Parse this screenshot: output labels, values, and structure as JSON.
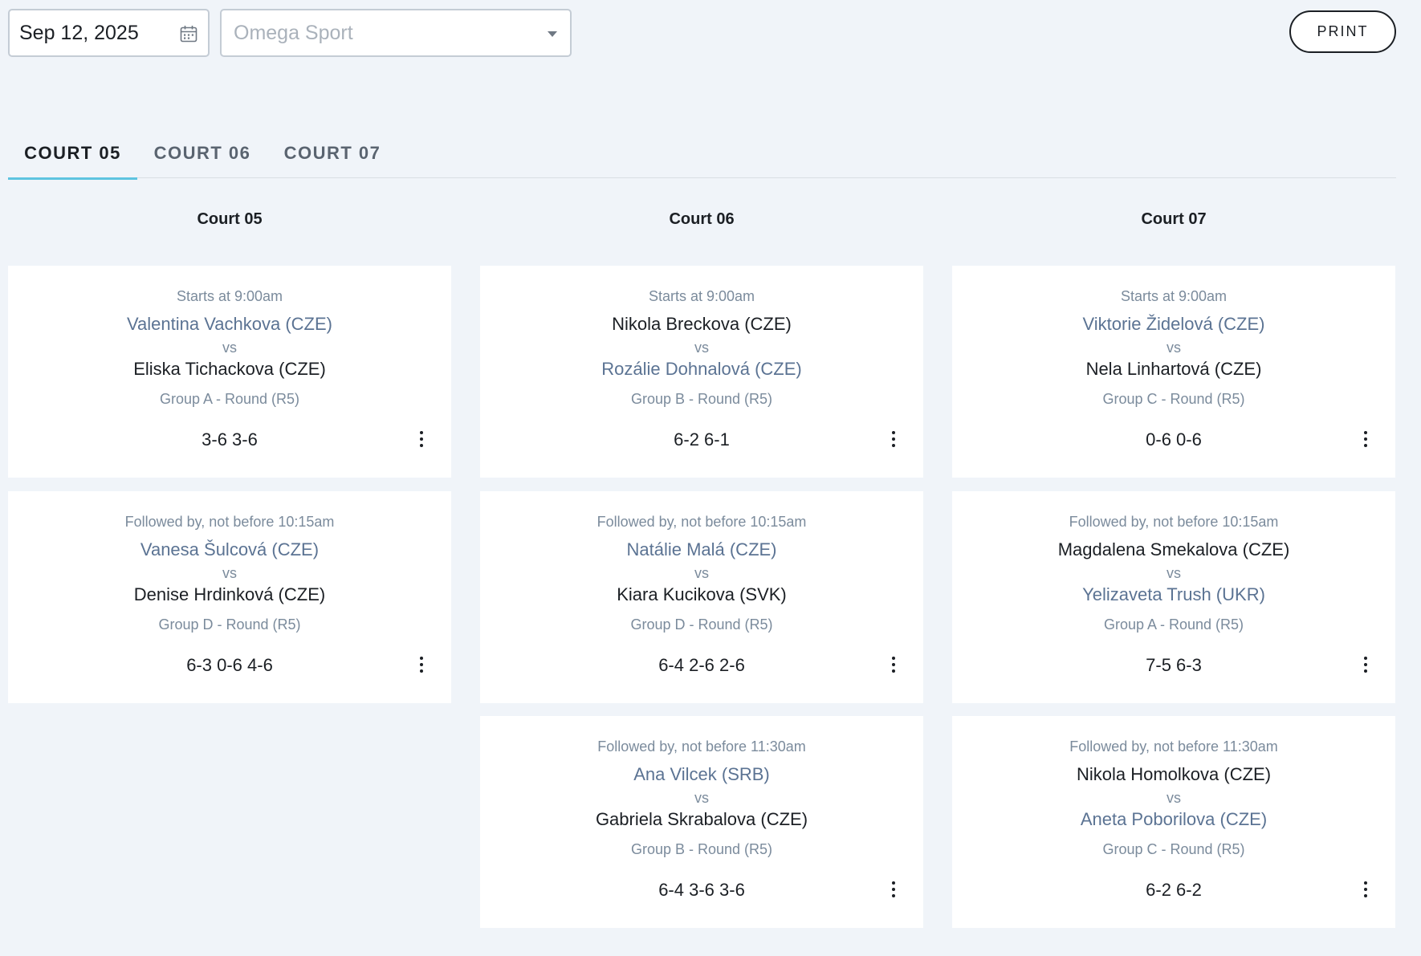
{
  "filters": {
    "date": "Sep 12, 2025",
    "venue_placeholder": "Omega Sport"
  },
  "print_label": "PRINT",
  "tabs": [
    {
      "label": "COURT 05",
      "active": true
    },
    {
      "label": "COURT 06",
      "active": false
    },
    {
      "label": "COURT 07",
      "active": false
    }
  ],
  "columns": [
    {
      "title": "Court 05",
      "matches": [
        {
          "when": "Starts at 9:00am",
          "p1": "Valentina Vachkova (CZE)",
          "p1_muted": true,
          "vs": "vs",
          "p2": "Eliska Tichackova (CZE)",
          "p2_muted": false,
          "group": "Group A - Round (R5)",
          "score": "3-6 3-6"
        },
        {
          "when": "Followed by, not before 10:15am",
          "p1": "Vanesa Šulcová (CZE)",
          "p1_muted": true,
          "vs": "vs",
          "p2": "Denise Hrdinková (CZE)",
          "p2_muted": false,
          "group": "Group D - Round (R5)",
          "score": "6-3 0-6 4-6"
        }
      ]
    },
    {
      "title": "Court 06",
      "matches": [
        {
          "when": "Starts at 9:00am",
          "p1": "Nikola Breckova (CZE)",
          "p1_muted": false,
          "vs": "vs",
          "p2": "Rozálie Dohnalová (CZE)",
          "p2_muted": true,
          "group": "Group B - Round (R5)",
          "score": "6-2 6-1"
        },
        {
          "when": "Followed by, not before 10:15am",
          "p1": "Natálie Malá (CZE)",
          "p1_muted": true,
          "vs": "vs",
          "p2": "Kiara Kucikova (SVK)",
          "p2_muted": false,
          "group": "Group D - Round (R5)",
          "score": "6-4 2-6 2-6"
        },
        {
          "when": "Followed by, not before 11:30am",
          "p1": "Ana Vilcek (SRB)",
          "p1_muted": true,
          "vs": "vs",
          "p2": "Gabriela Skrabalova (CZE)",
          "p2_muted": false,
          "group": "Group B - Round (R5)",
          "score": "6-4 3-6 3-6"
        }
      ]
    },
    {
      "title": "Court 07",
      "matches": [
        {
          "when": "Starts at 9:00am",
          "p1": "Viktorie Židelová (CZE)",
          "p1_muted": true,
          "vs": "vs",
          "p2": "Nela Linhartová (CZE)",
          "p2_muted": false,
          "group": "Group C - Round (R5)",
          "score": "0-6 0-6"
        },
        {
          "when": "Followed by, not before 10:15am",
          "p1": "Magdalena Smekalova (CZE)",
          "p1_muted": false,
          "vs": "vs",
          "p2": "Yelizaveta Trush (UKR)",
          "p2_muted": true,
          "group": "Group A - Round (R5)",
          "score": "7-5 6-3"
        },
        {
          "when": "Followed by, not before 11:30am",
          "p1": "Nikola Homolkova (CZE)",
          "p1_muted": false,
          "vs": "vs",
          "p2": "Aneta Poborilova (CZE)",
          "p2_muted": true,
          "group": "Group C - Round (R5)",
          "score": "6-2 6-2"
        }
      ]
    }
  ],
  "colors": {
    "background": "#f0f4f9",
    "muted_player": "#5b7393",
    "tab_indicator": "#5ec4e0"
  }
}
